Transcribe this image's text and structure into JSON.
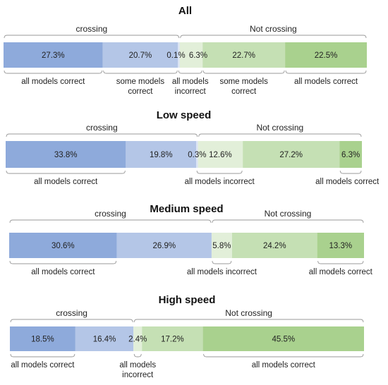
{
  "colors": {
    "c1": "#8eaadb",
    "c2": "#b4c6e7",
    "c3": "#dae3f3",
    "c4": "#e2efd9",
    "c5": "#c5e0b4",
    "c6": "#a9d18e"
  },
  "chart_data": [
    {
      "type": "bar",
      "title": "All",
      "series": [
        {
          "value": 27.3,
          "label": "27.3%",
          "color": "c1"
        },
        {
          "value": 20.7,
          "label": "20.7%",
          "color": "c2"
        },
        {
          "value": 0.1,
          "label": "0.1%",
          "color": "c3"
        },
        {
          "value": 6.3,
          "label": "6.3%",
          "color": "c4"
        },
        {
          "value": 22.7,
          "label": "22.7%",
          "color": "c5"
        },
        {
          "value": 22.5,
          "label": "22.5%",
          "color": "c6"
        }
      ],
      "groups": [
        {
          "label": "crossing",
          "first": 0,
          "last": 2
        },
        {
          "label": "Not crossing",
          "first": 3,
          "last": 5
        }
      ],
      "bottom_labels": [
        {
          "first": 0,
          "last": 0,
          "lines": [
            "all models correct"
          ]
        },
        {
          "first": 1,
          "last": 1,
          "lines": [
            "some models",
            "correct"
          ]
        },
        {
          "first": 2,
          "last": 3,
          "lines": [
            "all models",
            "incorrect"
          ]
        },
        {
          "first": 4,
          "last": 4,
          "lines": [
            "some models",
            "correct"
          ]
        },
        {
          "first": 5,
          "last": 5,
          "lines": [
            "all models correct"
          ]
        }
      ]
    },
    {
      "type": "bar",
      "title": "Low speed",
      "series": [
        {
          "value": 33.8,
          "label": "33.8%",
          "color": "c1"
        },
        {
          "value": 19.8,
          "label": "19.8%",
          "color": "c2"
        },
        {
          "value": 0.3,
          "label": "0.3%",
          "color": "c3"
        },
        {
          "value": 12.6,
          "label": "12.6%",
          "color": "c4"
        },
        {
          "value": 27.2,
          "label": "27.2%",
          "color": "c5"
        },
        {
          "value": 6.3,
          "label": "6.3%",
          "color": "c6"
        }
      ],
      "groups": [
        {
          "label": "crossing",
          "first": 0,
          "last": 2
        },
        {
          "label": "Not crossing",
          "first": 3,
          "last": 5
        }
      ],
      "bottom_labels": [
        {
          "first": 0,
          "last": 0,
          "lines": [
            "all models correct"
          ]
        },
        {
          "first": 2,
          "last": 3,
          "lines": [
            "all models incorrect"
          ]
        },
        {
          "first": 5,
          "last": 5,
          "lines": [
            "all models correct"
          ]
        }
      ]
    },
    {
      "type": "bar",
      "title": "Medium speed",
      "series": [
        {
          "value": 30.6,
          "label": "30.6%",
          "color": "c1"
        },
        {
          "value": 26.9,
          "label": "26.9%",
          "color": "c2"
        },
        {
          "value": 5.8,
          "label": "5.8%",
          "color": "c4"
        },
        {
          "value": 24.2,
          "label": "24.2%",
          "color": "c5"
        },
        {
          "value": 13.3,
          "label": "13.3%",
          "color": "c6"
        }
      ],
      "groups": [
        {
          "label": "crossing",
          "first": 0,
          "last": 1
        },
        {
          "label": "Not crossing",
          "first": 2,
          "last": 4
        }
      ],
      "bottom_labels": [
        {
          "first": 0,
          "last": 0,
          "lines": [
            "all models correct"
          ]
        },
        {
          "first": 2,
          "last": 2,
          "lines": [
            "all models incorrect"
          ]
        },
        {
          "first": 4,
          "last": 4,
          "lines": [
            "all models correct"
          ]
        }
      ]
    },
    {
      "type": "bar",
      "title": "High speed",
      "series": [
        {
          "value": 18.5,
          "label": "18.5%",
          "color": "c1"
        },
        {
          "value": 16.4,
          "label": "16.4%",
          "color": "c2"
        },
        {
          "value": 2.4,
          "label": "2.4%",
          "color": "c4"
        },
        {
          "value": 17.2,
          "label": "17.2%",
          "color": "c5"
        },
        {
          "value": 45.5,
          "label": "45.5%",
          "color": "c6"
        }
      ],
      "groups": [
        {
          "label": "crossing",
          "first": 0,
          "last": 1
        },
        {
          "label": "Not crossing",
          "first": 2,
          "last": 4
        }
      ],
      "bottom_labels": [
        {
          "first": 0,
          "last": 0,
          "lines": [
            "all models correct"
          ]
        },
        {
          "first": 2,
          "last": 2,
          "lines": [
            "all models",
            "incorrect"
          ]
        },
        {
          "first": 4,
          "last": 4,
          "lines": [
            "all models correct"
          ]
        }
      ]
    }
  ]
}
